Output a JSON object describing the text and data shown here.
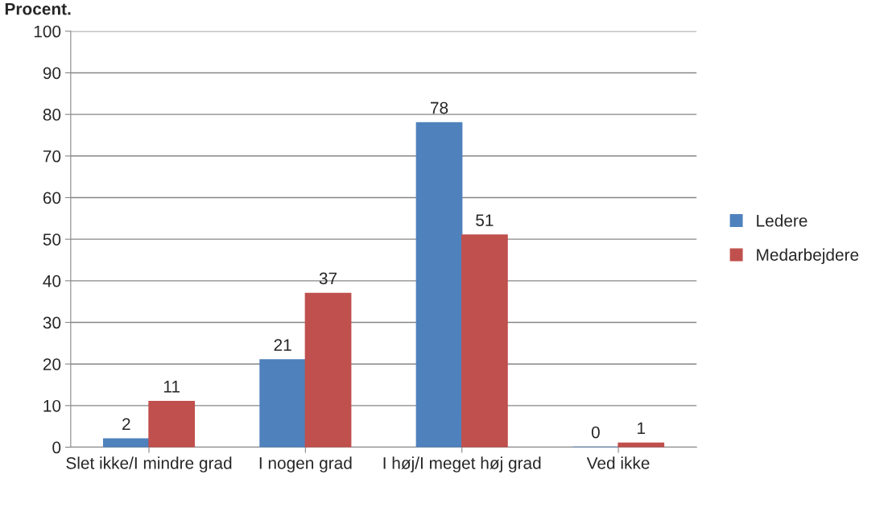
{
  "chart_data": {
    "type": "bar",
    "title": "Procent.",
    "categories": [
      "Slet ikke/I mindre grad",
      "I nogen grad",
      "I høj/I meget høj grad",
      "Ved ikke"
    ],
    "series": [
      {
        "name": "Ledere",
        "color": "#4f81bd",
        "values": [
          2,
          21,
          78,
          0
        ]
      },
      {
        "name": "Medarbejdere",
        "color": "#c0504d",
        "values": [
          11,
          37,
          51,
          1
        ]
      }
    ],
    "ylim": [
      0,
      100
    ],
    "yticks": [
      0,
      10,
      20,
      30,
      40,
      50,
      60,
      70,
      80,
      90,
      100
    ],
    "grid": "y",
    "legend": "right",
    "data_labels": true
  }
}
